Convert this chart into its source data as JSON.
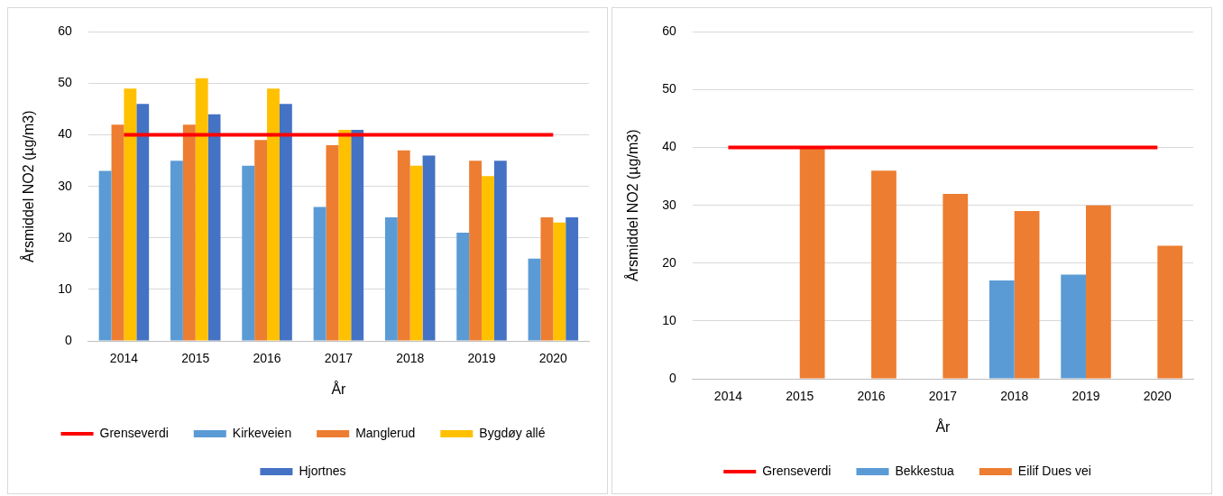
{
  "chart_data": [
    {
      "type": "bar",
      "xlabel": "År",
      "ylabel": "Årsmiddel NO2 (µg/m3)",
      "categories": [
        "2014",
        "2015",
        "2016",
        "2017",
        "2018",
        "2019",
        "2020"
      ],
      "ylim": [
        0,
        60
      ],
      "yticks": [
        0,
        10,
        20,
        30,
        40,
        50,
        60
      ],
      "grid": "y",
      "legend": "bottom",
      "series": [
        {
          "name": "Kirkeveien",
          "color": "#5b9bd5",
          "values": [
            33,
            35,
            34,
            26,
            24,
            21,
            16
          ]
        },
        {
          "name": "Manglerud",
          "color": "#ed7d31",
          "values": [
            42,
            42,
            39,
            38,
            37,
            35,
            24
          ]
        },
        {
          "name": "Bygdøy allé",
          "color": "#ffc000",
          "values": [
            49,
            51,
            49,
            41,
            34,
            32,
            23
          ]
        },
        {
          "name": "Hjortnes",
          "color": "#4472c4",
          "values": [
            46,
            44,
            46,
            41,
            36,
            35,
            24
          ]
        },
        {
          "name": "Grenseverdi",
          "type": "line",
          "color": "#ff0000",
          "values": [
            40,
            40,
            40,
            40,
            40,
            40,
            40
          ]
        }
      ]
    },
    {
      "type": "bar",
      "xlabel": "År",
      "ylabel": "Årsmiddel NO2 (µg/m3)",
      "categories": [
        "2014",
        "2015",
        "2016",
        "2017",
        "2018",
        "2019",
        "2020"
      ],
      "ylim": [
        0,
        60
      ],
      "yticks": [
        0,
        10,
        20,
        30,
        40,
        50,
        60
      ],
      "grid": "y",
      "legend": "bottom",
      "series": [
        {
          "name": "Bekkestua",
          "color": "#5b9bd5",
          "values": [
            null,
            null,
            null,
            null,
            17,
            18,
            null
          ]
        },
        {
          "name": "Eilif Dues vei",
          "color": "#ed7d31",
          "values": [
            null,
            40,
            36,
            32,
            29,
            30,
            23
          ]
        },
        {
          "name": "Grenseverdi",
          "type": "line",
          "color": "#ff0000",
          "values": [
            40,
            40,
            40,
            40,
            40,
            40,
            40
          ]
        }
      ]
    }
  ]
}
